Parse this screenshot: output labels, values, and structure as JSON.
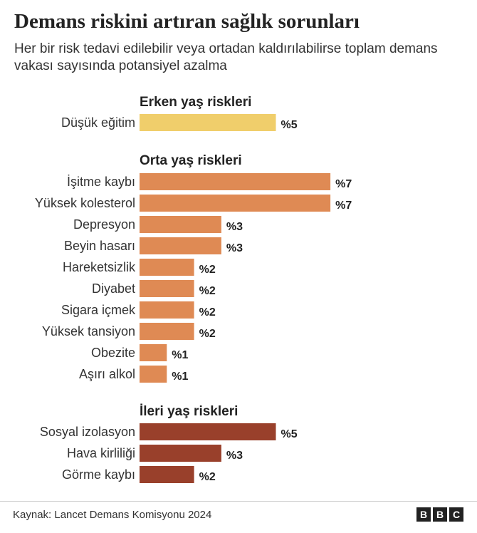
{
  "chart_data": {
    "type": "bar",
    "title": "Demans riskini artıran sağlık sorunları",
    "subtitle": "Her bir risk tedavi edilebilir veya ortadan kaldırılabilirse toplam demans vakası sayısında potansiyel azalma",
    "value_prefix": "%",
    "xlim": [
      0,
      7
    ],
    "groups": [
      {
        "name": "Erken yaş riskleri",
        "color": "#f0ce6b",
        "categories": [
          "Düşük eğitim"
        ],
        "values": [
          5
        ]
      },
      {
        "name": "Orta yaş riskleri",
        "color": "#df8a54",
        "categories": [
          "İşitme kaybı",
          "Yüksek kolesterol",
          "Depresyon",
          "Beyin hasarı",
          "Hareketsizlik",
          "Diyabet",
          "Sigara içmek",
          "Yüksek tansiyon",
          "Obezite",
          "Aşırı alkol"
        ],
        "values": [
          7,
          7,
          3,
          3,
          2,
          2,
          2,
          2,
          1,
          1
        ]
      },
      {
        "name": "İleri yaş riskleri",
        "color": "#99402b",
        "categories": [
          "Sosyal izolasyon",
          "Hava kirliliği",
          "Görme kaybı"
        ],
        "values": [
          5,
          3,
          2
        ]
      }
    ]
  },
  "footer": {
    "source": "Kaynak: Lancet Demans Komisyonu 2024",
    "logo": [
      "B",
      "B",
      "C"
    ]
  }
}
